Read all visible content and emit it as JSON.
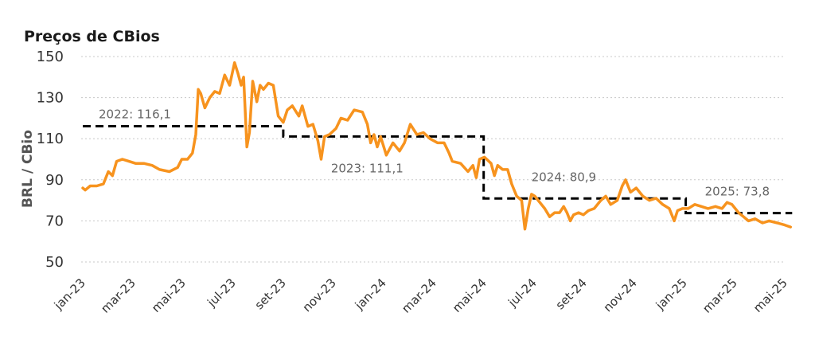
{
  "chart_data": {
    "type": "line",
    "title": "Preços de CBios",
    "xlabel": "",
    "ylabel": "BRL / CBio",
    "ylim": [
      50,
      150
    ],
    "yticks": [
      50,
      70,
      90,
      110,
      130,
      150
    ],
    "grid": "horizontal-dashed",
    "x_tick_labels": [
      "jan-23",
      "mar-23",
      "mai-23",
      "jul-23",
      "set-23",
      "nov-23",
      "jan-24",
      "mar-24",
      "mai-24",
      "jul-24",
      "set-24",
      "nov-24",
      "jan-25",
      "mar-25",
      "mai-25"
    ],
    "colors": {
      "price": "#f7931e",
      "average": "#000000"
    },
    "series": [
      {
        "values": [
          [
            "2023-01-01",
            86
          ],
          [
            "2023-01-04",
            85
          ],
          [
            "2023-01-10",
            87
          ],
          [
            "2023-01-18",
            87
          ],
          [
            "2023-01-26",
            88
          ],
          [
            "2023-02-01",
            94
          ],
          [
            "2023-02-06",
            92
          ],
          [
            "2023-02-11",
            99
          ],
          [
            "2023-02-18",
            100
          ],
          [
            "2023-02-26",
            99
          ],
          [
            "2023-03-06",
            98
          ],
          [
            "2023-03-16",
            98
          ],
          [
            "2023-03-26",
            97
          ],
          [
            "2023-04-04",
            95
          ],
          [
            "2023-04-16",
            94
          ],
          [
            "2023-04-26",
            96
          ],
          [
            "2023-05-01",
            100
          ],
          [
            "2023-05-08",
            100
          ],
          [
            "2023-05-14",
            103
          ],
          [
            "2023-05-18",
            112
          ],
          [
            "2023-05-21",
            134
          ],
          [
            "2023-05-24",
            132
          ],
          [
            "2023-05-29",
            125
          ],
          [
            "2023-06-04",
            130
          ],
          [
            "2023-06-10",
            133
          ],
          [
            "2023-06-16",
            132
          ],
          [
            "2023-06-22",
            141
          ],
          [
            "2023-06-28",
            136
          ],
          [
            "2023-07-04",
            147
          ],
          [
            "2023-07-08",
            142
          ],
          [
            "2023-07-12",
            136
          ],
          [
            "2023-07-15",
            140
          ],
          [
            "2023-07-19",
            106
          ],
          [
            "2023-07-22",
            113
          ],
          [
            "2023-07-26",
            138
          ],
          [
            "2023-07-31",
            128
          ],
          [
            "2023-08-04",
            136
          ],
          [
            "2023-08-08",
            134
          ],
          [
            "2023-08-14",
            137
          ],
          [
            "2023-08-20",
            136
          ],
          [
            "2023-08-26",
            121
          ],
          [
            "2023-09-01",
            118
          ],
          [
            "2023-09-06",
            124
          ],
          [
            "2023-09-12",
            126
          ],
          [
            "2023-09-20",
            121
          ],
          [
            "2023-09-24",
            126
          ],
          [
            "2023-10-01",
            116
          ],
          [
            "2023-10-07",
            117
          ],
          [
            "2023-10-13",
            109
          ],
          [
            "2023-10-17",
            100
          ],
          [
            "2023-10-21",
            111
          ],
          [
            "2023-10-27",
            112
          ],
          [
            "2023-11-04",
            115
          ],
          [
            "2023-11-10",
            120
          ],
          [
            "2023-11-18",
            119
          ],
          [
            "2023-11-26",
            124
          ],
          [
            "2023-12-06",
            123
          ],
          [
            "2023-12-12",
            117
          ],
          [
            "2023-12-16",
            108
          ],
          [
            "2023-12-20",
            112
          ],
          [
            "2023-12-24",
            106
          ],
          [
            "2023-12-28",
            111
          ],
          [
            "2024-01-04",
            102
          ],
          [
            "2024-01-12",
            108
          ],
          [
            "2024-01-20",
            104
          ],
          [
            "2024-01-26",
            108
          ],
          [
            "2024-02-02",
            117
          ],
          [
            "2024-02-10",
            112
          ],
          [
            "2024-02-18",
            113
          ],
          [
            "2024-02-26",
            110
          ],
          [
            "2024-03-06",
            108
          ],
          [
            "2024-03-14",
            108
          ],
          [
            "2024-03-20",
            103
          ],
          [
            "2024-03-24",
            99
          ],
          [
            "2024-04-03",
            98
          ],
          [
            "2024-04-12",
            94
          ],
          [
            "2024-04-18",
            97
          ],
          [
            "2024-04-22",
            91
          ],
          [
            "2024-04-26",
            100
          ],
          [
            "2024-05-02",
            101
          ],
          [
            "2024-05-10",
            98
          ],
          [
            "2024-05-14",
            92
          ],
          [
            "2024-05-18",
            97
          ],
          [
            "2024-05-24",
            95
          ],
          [
            "2024-05-30",
            95
          ],
          [
            "2024-06-04",
            88
          ],
          [
            "2024-06-10",
            82
          ],
          [
            "2024-06-16",
            80
          ],
          [
            "2024-06-20",
            66
          ],
          [
            "2024-06-24",
            76
          ],
          [
            "2024-06-28",
            83
          ],
          [
            "2024-07-02",
            82
          ],
          [
            "2024-07-08",
            79
          ],
          [
            "2024-07-14",
            76
          ],
          [
            "2024-07-20",
            72
          ],
          [
            "2024-07-26",
            74
          ],
          [
            "2024-08-01",
            74
          ],
          [
            "2024-08-06",
            77
          ],
          [
            "2024-08-10",
            74
          ],
          [
            "2024-08-14",
            70
          ],
          [
            "2024-08-18",
            73
          ],
          [
            "2024-08-24",
            74
          ],
          [
            "2024-08-30",
            73
          ],
          [
            "2024-09-05",
            75
          ],
          [
            "2024-09-12",
            76
          ],
          [
            "2024-09-20",
            80
          ],
          [
            "2024-09-26",
            82
          ],
          [
            "2024-10-02",
            78
          ],
          [
            "2024-10-10",
            80
          ],
          [
            "2024-10-16",
            87
          ],
          [
            "2024-10-20",
            90
          ],
          [
            "2024-10-26",
            84
          ],
          [
            "2024-11-02",
            86
          ],
          [
            "2024-11-10",
            82
          ],
          [
            "2024-11-18",
            80
          ],
          [
            "2024-11-26",
            81
          ],
          [
            "2024-12-04",
            78
          ],
          [
            "2024-12-12",
            76
          ],
          [
            "2024-12-18",
            70
          ],
          [
            "2024-12-22",
            75
          ],
          [
            "2024-12-28",
            76
          ],
          [
            "2025-01-04",
            76
          ],
          [
            "2025-01-12",
            78
          ],
          [
            "2025-01-20",
            77
          ],
          [
            "2025-01-28",
            76
          ],
          [
            "2025-02-06",
            77
          ],
          [
            "2025-02-14",
            76
          ],
          [
            "2025-02-20",
            79
          ],
          [
            "2025-02-26",
            78
          ],
          [
            "2025-03-06",
            74
          ],
          [
            "2025-03-12",
            72
          ],
          [
            "2025-03-18",
            70
          ],
          [
            "2025-03-26",
            71
          ],
          [
            "2025-04-04",
            69
          ],
          [
            "2025-04-12",
            70
          ],
          [
            "2025-04-22",
            69
          ],
          [
            "2025-05-01",
            68
          ],
          [
            "2025-05-08",
            67
          ]
        ]
      }
    ],
    "averages": [
      {
        "label": "2022: 116,1",
        "value": 116.1,
        "start": "2023-01-01",
        "end": "2023-09-01"
      },
      {
        "label": "2023: 111,1",
        "value": 111.1,
        "start": "2023-09-01",
        "end": "2024-05-01"
      },
      {
        "label": "2024: 80,9",
        "value": 80.9,
        "start": "2024-05-01",
        "end": "2025-01-01"
      },
      {
        "label": "2025: 73,8",
        "value": 73.8,
        "start": "2025-01-01",
        "end": "2025-05-10"
      }
    ]
  }
}
